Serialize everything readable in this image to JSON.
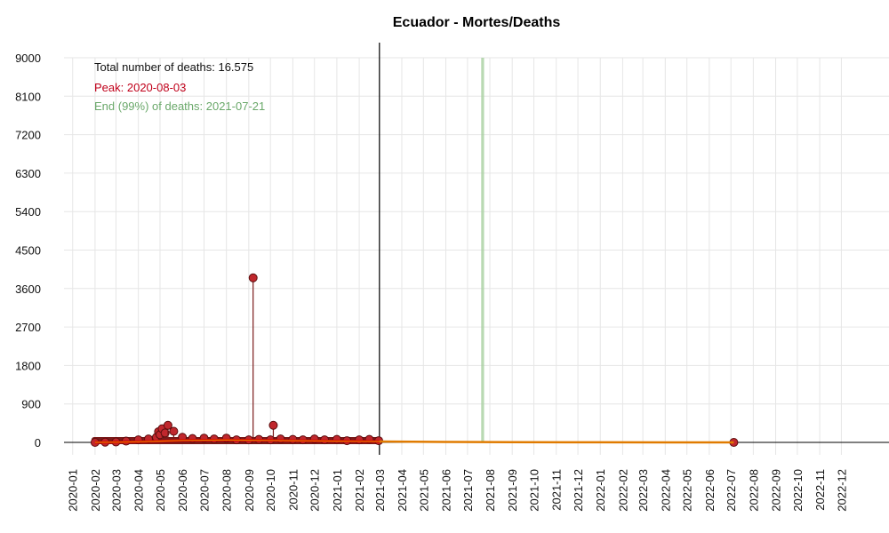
{
  "chart_data": {
    "type": "line",
    "title": "Ecuador - Mortes/Deaths",
    "xlabel": "",
    "ylabel": "",
    "ylim": [
      0,
      9000
    ],
    "yticks": [
      0,
      900,
      1800,
      2700,
      3600,
      4500,
      5400,
      6300,
      7200,
      8100,
      9000
    ],
    "xlim": [
      "2019-12-20",
      "2023-02-05"
    ],
    "xtick_labels": [
      "2020-01",
      "2020-02",
      "2020-03",
      "2020-04",
      "2020-05",
      "2020-06",
      "2020-07",
      "2020-08",
      "2020-09",
      "2020-10",
      "2020-11",
      "2020-12",
      "2021-01",
      "2021-02",
      "2021-03",
      "2021-04",
      "2021-05",
      "2021-06",
      "2021-07",
      "2021-08",
      "2021-09",
      "2021-10",
      "2021-11",
      "2021-12",
      "2022-01",
      "2022-02",
      "2022-03",
      "2022-04",
      "2022-05",
      "2022-06",
      "2022-07",
      "2022-08",
      "2022-09",
      "2022-10",
      "2022-11",
      "2022-12"
    ],
    "grid": true,
    "annotations": {
      "total": "Total number of deaths: 16.575",
      "peak": "Peak: 2020-08-03",
      "end": "End (99%) of deaths: 2021-07-21"
    },
    "colors": {
      "points": "#c0272d",
      "stems": "#7a1a1a",
      "trend": "#e07b00",
      "trend_observed": "#d40000",
      "peak_text": "#c0001a",
      "end_text": "#6aa86a",
      "end_band": "#a8d0a0"
    },
    "data_end_line": "2021-03-01",
    "end_band": [
      "2021-07-20",
      "2021-07-24"
    ],
    "series": [
      {
        "type": "points",
        "x": [
          "2020-02-01",
          "2020-02-15",
          "2020-03-01",
          "2020-03-15",
          "2020-04-01",
          "2020-04-15",
          "2020-04-26",
          "2020-04-29",
          "2020-05-01",
          "2020-05-04",
          "2020-05-08",
          "2020-05-12",
          "2020-05-20",
          "2020-06-01",
          "2020-06-15",
          "2020-07-01",
          "2020-07-15",
          "2020-08-01",
          "2020-08-15",
          "2020-09-01",
          "2020-09-07",
          "2020-09-15",
          "2020-10-01",
          "2020-10-05",
          "2020-10-15",
          "2020-11-01",
          "2020-11-15",
          "2020-12-01",
          "2020-12-15",
          "2021-01-01",
          "2021-01-15",
          "2021-02-01",
          "2021-02-15",
          "2021-02-28",
          "2022-07-05"
        ],
        "y": [
          0,
          5,
          10,
          30,
          60,
          80,
          120,
          250,
          180,
          320,
          220,
          400,
          260,
          120,
          90,
          100,
          80,
          100,
          60,
          60,
          3850,
          70,
          60,
          400,
          80,
          70,
          60,
          80,
          60,
          70,
          40,
          60,
          70,
          40,
          0
        ]
      },
      {
        "type": "trend",
        "x": [
          "2020-02-01",
          "2020-03-01",
          "2020-04-01",
          "2020-05-01",
          "2020-06-01",
          "2020-07-01",
          "2020-08-01",
          "2020-09-01",
          "2020-10-01",
          "2020-11-01",
          "2020-12-01",
          "2021-01-01",
          "2021-02-01",
          "2021-03-01",
          "2021-06-01",
          "2021-09-01",
          "2022-01-01",
          "2022-04-01",
          "2022-07-05"
        ],
        "y": [
          0,
          5,
          15,
          30,
          45,
          50,
          55,
          50,
          45,
          40,
          35,
          30,
          25,
          20,
          10,
          5,
          2,
          1,
          0
        ]
      }
    ]
  }
}
